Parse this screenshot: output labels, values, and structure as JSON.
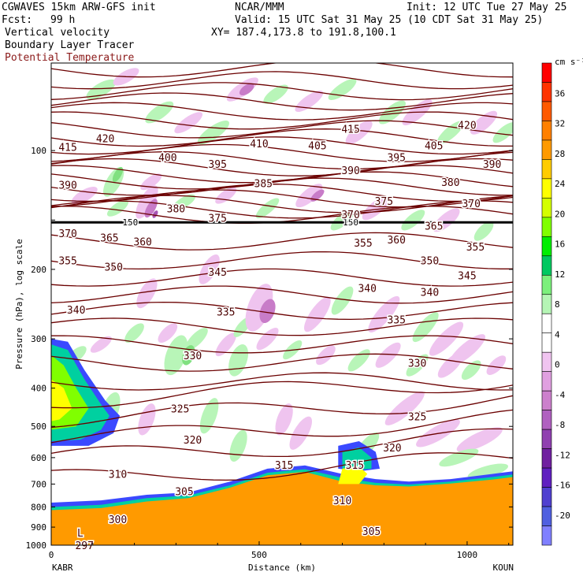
{
  "header": {
    "model": "CGWAVES 15km ARW-GFS init",
    "org": "NCAR/MMM",
    "init": "Init: 12 UTC Tue 27 May 25",
    "fcst_label": "Fcst:",
    "fcst_value": "99 h",
    "valid": "Valid: 15 UTC Sat 31 May 25 (10 CDT Sat 31 May 25)",
    "field1": "Vertical velocity",
    "xy": "XY= 187.4,173.8 to 191.8,100.1",
    "field2": "Boundary Layer Tracer",
    "field3": "Potential Temperature",
    "field3_color": "#8b1a1a"
  },
  "chart_data": {
    "type": "contour cross-section",
    "xlabel": "Distance (km)",
    "ylabel": "Pressure (hPa), log scale",
    "x_ticks": [
      "0",
      "500",
      "1000"
    ],
    "x_tick_values": [
      0,
      500,
      1000
    ],
    "xlim": [
      0,
      1110
    ],
    "y_ticks": [
      "100",
      "200",
      "300",
      "400",
      "500",
      "600",
      "700",
      "800",
      "900",
      "1000"
    ],
    "y_tick_values": [
      100,
      200,
      300,
      400,
      500,
      600,
      700,
      800,
      900,
      1000
    ],
    "ylim": [
      1000,
      60
    ],
    "y_scale": "log",
    "left_station": "KABR",
    "right_station": "KOUN",
    "tropopause_label": "150",
    "isentrope_labels": [
      {
        "x": 40,
        "p": 98,
        "t": "415"
      },
      {
        "x": 130,
        "p": 93,
        "t": "420"
      },
      {
        "x": 280,
        "p": 104,
        "t": "400"
      },
      {
        "x": 400,
        "p": 108,
        "t": "395"
      },
      {
        "x": 500,
        "p": 96,
        "t": "410"
      },
      {
        "x": 640,
        "p": 97,
        "t": "405"
      },
      {
        "x": 720,
        "p": 88,
        "t": "415"
      },
      {
        "x": 1000,
        "p": 86,
        "t": "420"
      },
      {
        "x": 40,
        "p": 122,
        "t": "390"
      },
      {
        "x": 510,
        "p": 121,
        "t": "385"
      },
      {
        "x": 720,
        "p": 112,
        "t": "390"
      },
      {
        "x": 830,
        "p": 104,
        "t": "395"
      },
      {
        "x": 920,
        "p": 97,
        "t": "405"
      },
      {
        "x": 1060,
        "p": 108,
        "t": "390"
      },
      {
        "x": 300,
        "p": 140,
        "t": "380"
      },
      {
        "x": 400,
        "p": 148,
        "t": "375"
      },
      {
        "x": 800,
        "p": 134,
        "t": "375"
      },
      {
        "x": 960,
        "p": 120,
        "t": "380"
      },
      {
        "x": 1010,
        "p": 136,
        "t": "370"
      },
      {
        "x": 720,
        "p": 145,
        "t": "370"
      },
      {
        "x": 40,
        "p": 162,
        "t": "370"
      },
      {
        "x": 140,
        "p": 166,
        "t": "365"
      },
      {
        "x": 220,
        "p": 170,
        "t": "360"
      },
      {
        "x": 750,
        "p": 171,
        "t": "355"
      },
      {
        "x": 830,
        "p": 168,
        "t": "360"
      },
      {
        "x": 920,
        "p": 155,
        "t": "365"
      },
      {
        "x": 40,
        "p": 190,
        "t": "355"
      },
      {
        "x": 150,
        "p": 197,
        "t": "350"
      },
      {
        "x": 910,
        "p": 190,
        "t": "350"
      },
      {
        "x": 1020,
        "p": 175,
        "t": "355"
      },
      {
        "x": 1000,
        "p": 207,
        "t": "345"
      },
      {
        "x": 400,
        "p": 203,
        "t": "345"
      },
      {
        "x": 760,
        "p": 223,
        "t": "340"
      },
      {
        "x": 910,
        "p": 228,
        "t": "340"
      },
      {
        "x": 60,
        "p": 253,
        "t": "340"
      },
      {
        "x": 420,
        "p": 256,
        "t": "335"
      },
      {
        "x": 830,
        "p": 268,
        "t": "335"
      },
      {
        "x": 340,
        "p": 330,
        "t": "330"
      },
      {
        "x": 880,
        "p": 345,
        "t": "330"
      },
      {
        "x": 310,
        "p": 450,
        "t": "325"
      },
      {
        "x": 880,
        "p": 472,
        "t": "325"
      },
      {
        "x": 340,
        "p": 540,
        "t": "320"
      },
      {
        "x": 820,
        "p": 565,
        "t": "320"
      },
      {
        "x": 160,
        "p": 660,
        "t": "310"
      },
      {
        "x": 560,
        "p": 625,
        "t": "315"
      },
      {
        "x": 730,
        "p": 625,
        "t": "315"
      },
      {
        "x": 320,
        "p": 730,
        "t": "305"
      },
      {
        "x": 700,
        "p": 770,
        "t": "310"
      },
      {
        "x": 160,
        "p": 860,
        "t": "300"
      },
      {
        "x": 770,
        "p": 920,
        "t": "305"
      },
      {
        "x": 80,
        "p": 1000,
        "t": "297"
      },
      {
        "x": 70,
        "p": 930,
        "t": "L"
      }
    ]
  },
  "colorbar": {
    "unit": "cm s⁻¹",
    "labels": [
      "36",
      "32",
      "28",
      "24",
      "20",
      "16",
      "12",
      "8",
      "4",
      "0",
      "-4",
      "-8",
      "-12",
      "-16",
      "-20"
    ],
    "colors": [
      "#ff0000",
      "#ff3300",
      "#ff5a00",
      "#ff8000",
      "#ff9a00",
      "#ffcc00",
      "#ffff00",
      "#d4ff00",
      "#80ff00",
      "#00ee00",
      "#00c860",
      "#7cf07c",
      "#b5f5b5",
      "#ffffff",
      "#ffffff",
      "#f0c4f0",
      "#e0a0e0",
      "#cc80cc",
      "#b060c0",
      "#9040b0",
      "#7020a0",
      "#6020c0",
      "#5040d0",
      "#5060e0",
      "#8080ff"
    ]
  }
}
